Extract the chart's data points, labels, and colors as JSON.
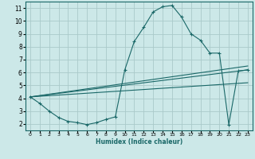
{
  "title": "",
  "xlabel": "Humidex (Indice chaleur)",
  "ylabel": "",
  "bg_color": "#cce8e8",
  "grid_color": "#aacaca",
  "line_color": "#1a6868",
  "xlim": [
    -0.5,
    23.5
  ],
  "ylim": [
    1.5,
    11.5
  ],
  "xticks": [
    0,
    1,
    2,
    3,
    4,
    5,
    6,
    7,
    8,
    9,
    10,
    11,
    12,
    13,
    14,
    15,
    16,
    17,
    18,
    19,
    20,
    21,
    22,
    23
  ],
  "yticks": [
    2,
    3,
    4,
    5,
    6,
    7,
    8,
    9,
    10,
    11
  ],
  "curve1_x": [
    0,
    1,
    2,
    3,
    4,
    5,
    6,
    7,
    8,
    9,
    10,
    11,
    12,
    13,
    14,
    15,
    16,
    17,
    18,
    19,
    20,
    21,
    22,
    23
  ],
  "curve1_y": [
    4.1,
    3.6,
    3.0,
    2.5,
    2.2,
    2.1,
    1.95,
    2.1,
    2.35,
    2.55,
    6.2,
    8.4,
    9.5,
    10.7,
    11.1,
    11.2,
    10.3,
    9.0,
    8.5,
    7.5,
    7.5,
    1.95,
    6.1,
    6.2
  ],
  "line1_x": [
    0,
    23
  ],
  "line1_y": [
    4.1,
    6.2
  ],
  "line2_x": [
    0,
    23
  ],
  "line2_y": [
    4.1,
    6.5
  ],
  "line3_x": [
    0,
    23
  ],
  "line3_y": [
    4.1,
    5.2
  ]
}
